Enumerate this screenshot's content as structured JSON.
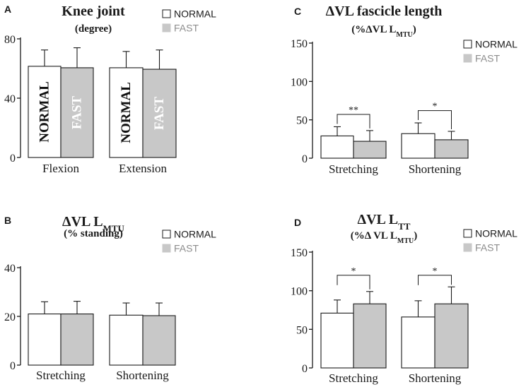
{
  "colors": {
    "normal_fill": "#ffffff",
    "fast_fill": "#c8c8c8",
    "axis": "#1a1a1a",
    "fast_text": "#ffffff",
    "normal_text": "#111111",
    "legend_fast_text": "#8c8c8c"
  },
  "chart_data": [
    {
      "panel": "A",
      "type": "bar",
      "title": "Knee joint",
      "subtitle": "(degree)",
      "categories": [
        "Flexion",
        "Extension"
      ],
      "series": [
        {
          "name": "NORMAL",
          "values": [
            61.5,
            60.5
          ],
          "errors": [
            11,
            11
          ]
        },
        {
          "name": "FAST",
          "values": [
            60.5,
            59.5
          ],
          "errors": [
            13.5,
            13
          ]
        }
      ],
      "ylim": [
        0,
        80
      ],
      "yticks": [
        0,
        40,
        80
      ],
      "legend": [
        "NORMAL",
        "FAST"
      ],
      "bar_labels": [
        "NORMAL",
        "FAST"
      ],
      "significance": []
    },
    {
      "panel": "B",
      "type": "bar",
      "title": "ΔVL L",
      "title_sub": "MTU",
      "subtitle": "(% standing)",
      "subtitle_sub": "",
      "subtitle_tail": "",
      "categories": [
        "Stretching",
        "Shortening"
      ],
      "series": [
        {
          "name": "NORMAL",
          "values": [
            21,
            20.5
          ],
          "errors": [
            5,
            5
          ]
        },
        {
          "name": "FAST",
          "values": [
            21,
            20.3
          ],
          "errors": [
            5.2,
            5.2
          ]
        }
      ],
      "ylim": [
        0,
        40
      ],
      "yticks": [
        0,
        20,
        40
      ],
      "legend": [
        "NORMAL",
        "FAST"
      ],
      "significance": []
    },
    {
      "panel": "C",
      "type": "bar",
      "title": "ΔVL fascicle length",
      "title_sub": "",
      "subtitle": "(%ΔVL L",
      "subtitle_sub": "MTU",
      "subtitle_tail": ")",
      "categories": [
        "Stretching",
        "Shortening"
      ],
      "series": [
        {
          "name": "NORMAL",
          "values": [
            29,
            32
          ],
          "errors": [
            12,
            14
          ]
        },
        {
          "name": "FAST",
          "values": [
            22,
            24
          ],
          "errors": [
            14,
            11
          ]
        }
      ],
      "ylim": [
        0,
        150
      ],
      "yticks": [
        0,
        50,
        100,
        150
      ],
      "legend": [
        "NORMAL",
        "FAST"
      ],
      "significance": [
        {
          "category": 0,
          "label": "**",
          "y": 57
        },
        {
          "category": 1,
          "label": "*",
          "y": 62
        }
      ]
    },
    {
      "panel": "D",
      "type": "bar",
      "title": "ΔVL L",
      "title_sub": "TT",
      "subtitle": "(%Δ VL L",
      "subtitle_sub": "MTU",
      "subtitle_tail": ")",
      "categories": [
        "Stretching",
        "Shortening"
      ],
      "series": [
        {
          "name": "NORMAL",
          "values": [
            71,
            66
          ],
          "errors": [
            17,
            21
          ]
        },
        {
          "name": "FAST",
          "values": [
            83,
            83
          ],
          "errors": [
            16,
            22
          ]
        }
      ],
      "ylim": [
        0,
        150
      ],
      "yticks": [
        0,
        50,
        100,
        150
      ],
      "legend": [
        "NORMAL",
        "FAST"
      ],
      "significance": [
        {
          "category": 0,
          "label": "*",
          "y": 120
        },
        {
          "category": 1,
          "label": "*",
          "y": 120
        }
      ]
    }
  ]
}
